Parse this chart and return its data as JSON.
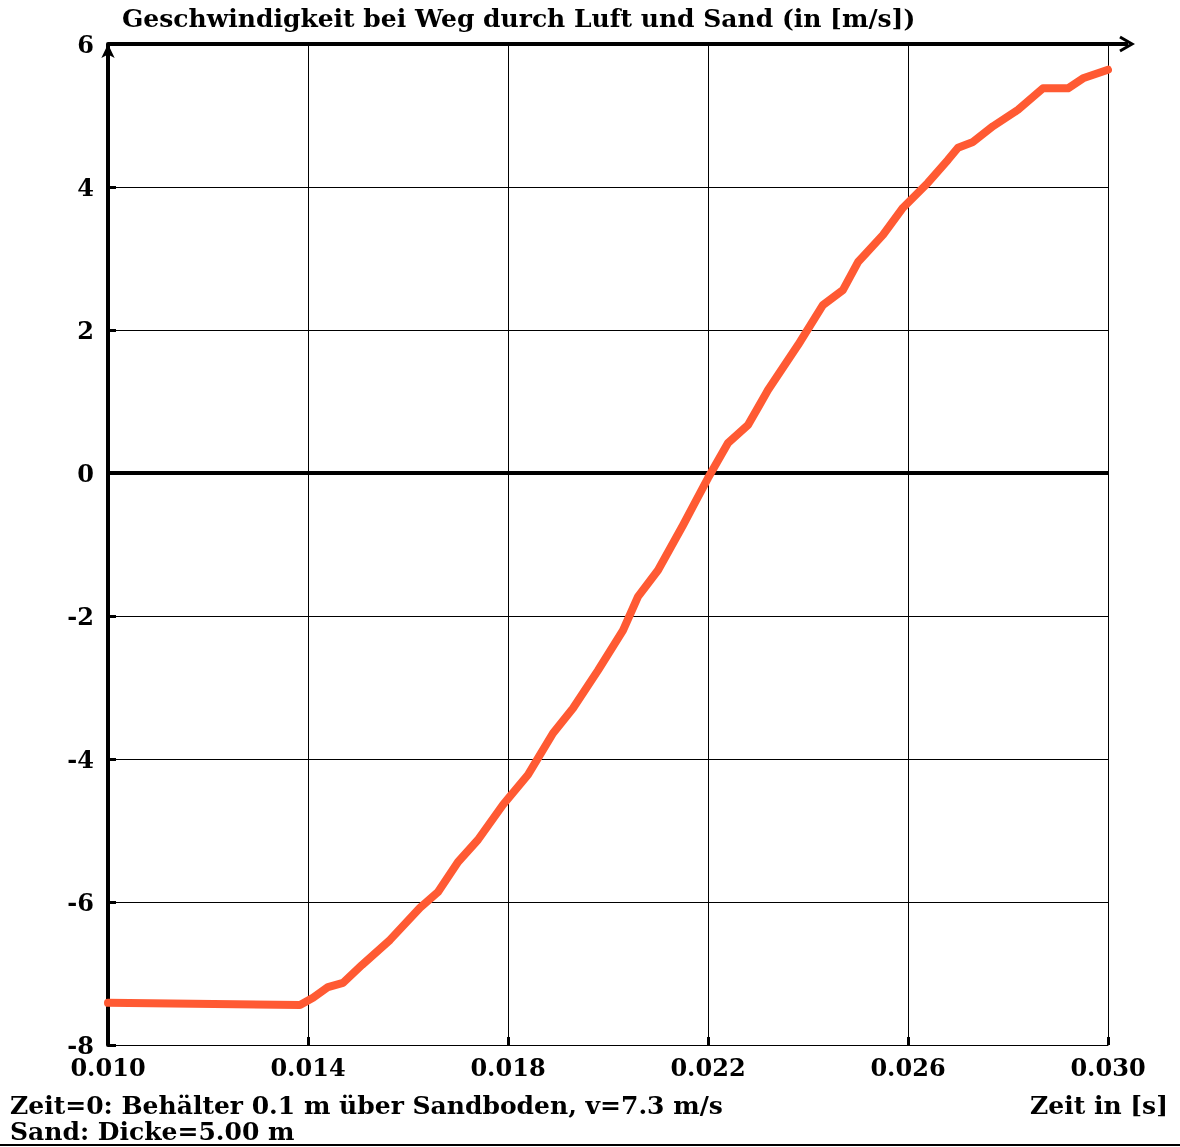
{
  "chart_data": {
    "type": "line",
    "ylabel": "Geschwindigkeit bei Weg durch Luft und Sand (in [m/s])",
    "xlabel": "Zeit in [s]",
    "annotations": [
      "Zeit=0: Behälter 0.1 m über Sandboden, v=7.3 m/s",
      "Sand: Dicke=5.00 m"
    ],
    "x": [
      0.01,
      0.01384,
      0.0141,
      0.0144,
      0.0147,
      0.01508,
      0.01564,
      0.01624,
      0.0166,
      0.017,
      0.0174,
      0.0179,
      0.0184,
      0.0189,
      0.0193,
      0.0198,
      0.0203,
      0.0206,
      0.021,
      0.0215,
      0.022,
      0.0224,
      0.0228,
      0.0232,
      0.0238,
      0.0243,
      0.0247,
      0.025,
      0.0255,
      0.0259,
      0.0264,
      0.0268,
      0.027,
      0.0273,
      0.0277,
      0.0282,
      0.0287,
      0.0292,
      0.0295,
      0.03
    ],
    "series": [
      {
        "color": "#ff5a33",
        "values": [
          -7.41,
          -7.44,
          -7.34,
          -7.19,
          -7.13,
          -6.88,
          -6.53,
          -6.08,
          -5.86,
          -5.44,
          -5.13,
          -4.64,
          -4.22,
          -3.64,
          -3.29,
          -2.76,
          -2.2,
          -1.73,
          -1.36,
          -0.73,
          -0.07,
          0.42,
          0.67,
          1.16,
          1.79,
          2.35,
          2.56,
          2.95,
          3.33,
          3.71,
          4.06,
          4.38,
          4.55,
          4.63,
          4.85,
          5.08,
          5.38,
          5.38,
          5.52,
          5.64
        ]
      }
    ],
    "xlim": [
      0.01,
      0.03
    ],
    "xticks": [
      {
        "value": 0.01,
        "label": "0.010"
      },
      {
        "value": 0.014,
        "label": "0.014"
      },
      {
        "value": 0.018,
        "label": "0.018"
      },
      {
        "value": 0.022,
        "label": "0.022"
      },
      {
        "value": 0.026,
        "label": "0.026"
      },
      {
        "value": 0.03,
        "label": "0.030"
      }
    ],
    "ylim": [
      -8,
      6
    ],
    "yticks": [
      -8,
      -6,
      -4,
      -2,
      0,
      2,
      4,
      6
    ],
    "ref_lines": [
      {
        "axis": "y",
        "value": 0,
        "color": "#000000"
      }
    ],
    "grid": true,
    "line_style": "solid"
  }
}
